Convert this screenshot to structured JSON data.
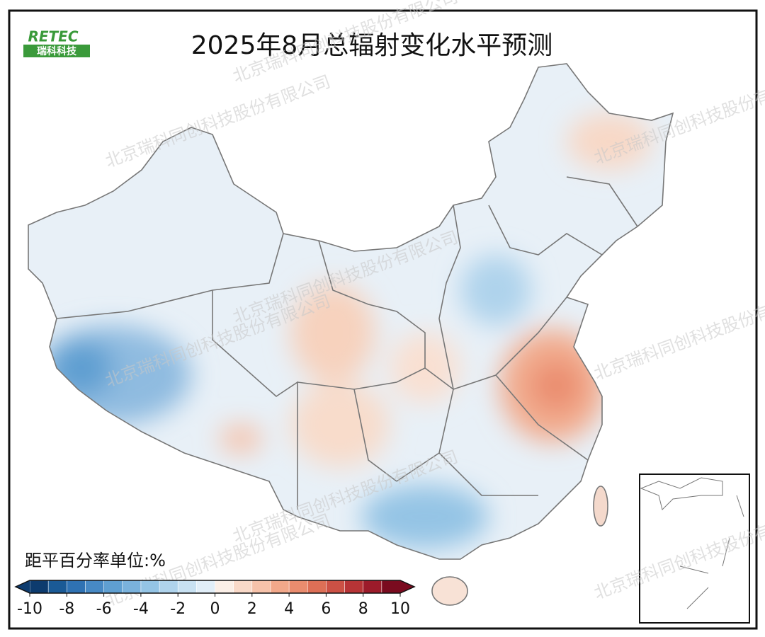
{
  "header": {
    "title": "2025年8月总辐射变化水平预测",
    "logo": {
      "brand": "RETEC",
      "name": "瑞科科技"
    }
  },
  "watermark": "北京瑞科同创科技股份有限公司",
  "legend": {
    "title": "距平百分率单位:%",
    "colors": [
      "#0d3b6e",
      "#1a5a96",
      "#2f72b3",
      "#4789c4",
      "#5f9fd1",
      "#7ab2dc",
      "#94c4e5",
      "#afd3ec",
      "#c8e1f2",
      "#e1eef8",
      "#fbefe7",
      "#f9d9c8",
      "#f6c2aa",
      "#f2a88a",
      "#ea8c6e",
      "#dd6f56",
      "#cc5145",
      "#b73436",
      "#9c1b2a",
      "#7a0b1f"
    ],
    "lim": [
      -10,
      10
    ],
    "ticks": [
      -10,
      -8,
      -6,
      -4,
      -2,
      0,
      2,
      4,
      6,
      8,
      10
    ]
  }
}
